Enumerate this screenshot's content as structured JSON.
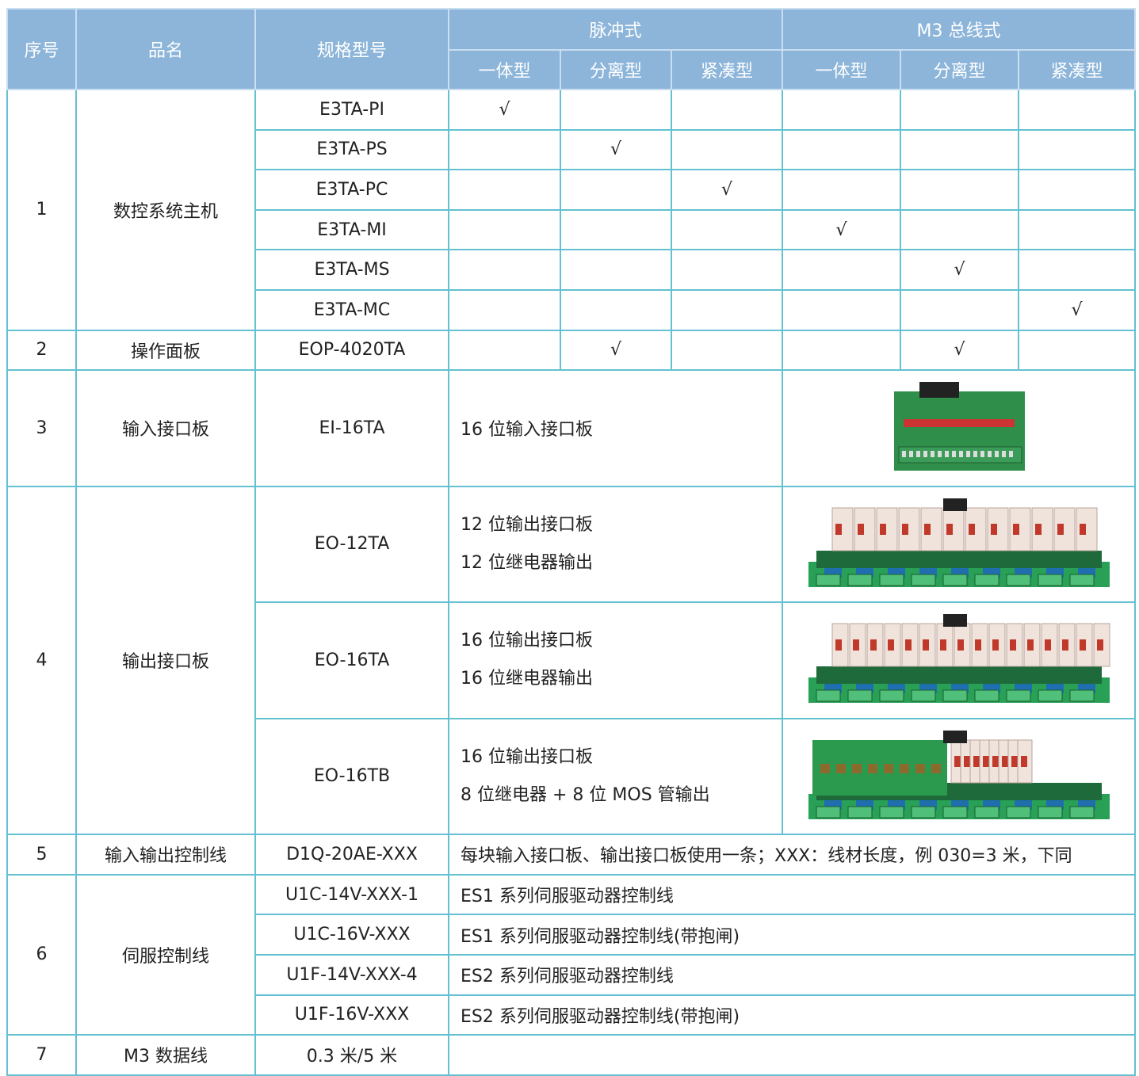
{
  "header": {
    "no": "序号",
    "name": "品名",
    "model": "规格型号",
    "groups": [
      "脉冲式",
      "M3 总线式"
    ],
    "subs": [
      "一体型",
      "分离型",
      "紧凑型",
      "一体型",
      "分离型",
      "紧凑型"
    ]
  },
  "rows": [
    {
      "no": "1",
      "name": "数控系统主机",
      "items": [
        {
          "model": "E3TA-PI",
          "checks": [
            "√",
            null,
            null,
            null,
            null,
            null
          ]
        },
        {
          "model": "E3TA-PS",
          "checks": [
            null,
            "√",
            null,
            null,
            null,
            null
          ]
        },
        {
          "model": "E3TA-PC",
          "checks": [
            null,
            null,
            "√",
            null,
            null,
            null
          ]
        },
        {
          "model": "E3TA-MI",
          "checks": [
            null,
            null,
            null,
            "√",
            null,
            null
          ]
        },
        {
          "model": "E3TA-MS",
          "checks": [
            null,
            null,
            null,
            null,
            "√",
            null
          ]
        },
        {
          "model": "E3TA-MC",
          "checks": [
            null,
            null,
            null,
            null,
            null,
            "√"
          ]
        }
      ]
    },
    {
      "no": "2",
      "name": "操作面板",
      "items": [
        {
          "model": "EOP-4020TA",
          "checks": [
            null,
            "√",
            null,
            null,
            "√",
            null
          ]
        }
      ]
    },
    {
      "no": "3",
      "name": "输入接口板",
      "items": [
        {
          "model": "EI-16TA",
          "description": [
            "16 位输入接口板"
          ]
        }
      ]
    },
    {
      "no": "4",
      "name": "输出接口板",
      "items": [
        {
          "model": "EO-12TA",
          "description": [
            "12 位输出接口板",
            "12 位继电器输出"
          ]
        },
        {
          "model": "EO-16TA",
          "description": [
            "16 位输出接口板",
            "16 位继电器输出"
          ]
        },
        {
          "model": "EO-16TB",
          "description": [
            "16 位输出接口板",
            "8 位继电器  + 8 位 MOS 管输出"
          ]
        }
      ]
    },
    {
      "no": "5",
      "name": "输入输出控制线",
      "items": [
        {
          "model": "D1Q-20AE-XXX",
          "description": [
            "每块输入接口板、输出接口板使用一条；XXX：线材长度，例 030=3 米，下同"
          ]
        }
      ]
    },
    {
      "no": "6",
      "name": "伺服控制线",
      "items": [
        {
          "model": "U1C-14V-XXX-1",
          "description": [
            "ES1 系列伺服驱动器控制线"
          ]
        },
        {
          "model": "U1C-16V-XXX",
          "description": [
            "ES1 系列伺服驱动器控制线(带抱闸)"
          ]
        },
        {
          "model": "U1F-14V-XXX-4",
          "description": [
            "ES2 系列伺服驱动器控制线"
          ]
        },
        {
          "model": "U1F-16V-XXX",
          "description": [
            "ES2 系列伺服驱动器控制线(带抱闸)"
          ]
        }
      ]
    },
    {
      "no": "7",
      "name": "M3 数据线",
      "items": [
        {
          "model": "0.3 米/5 米"
        }
      ]
    }
  ]
}
